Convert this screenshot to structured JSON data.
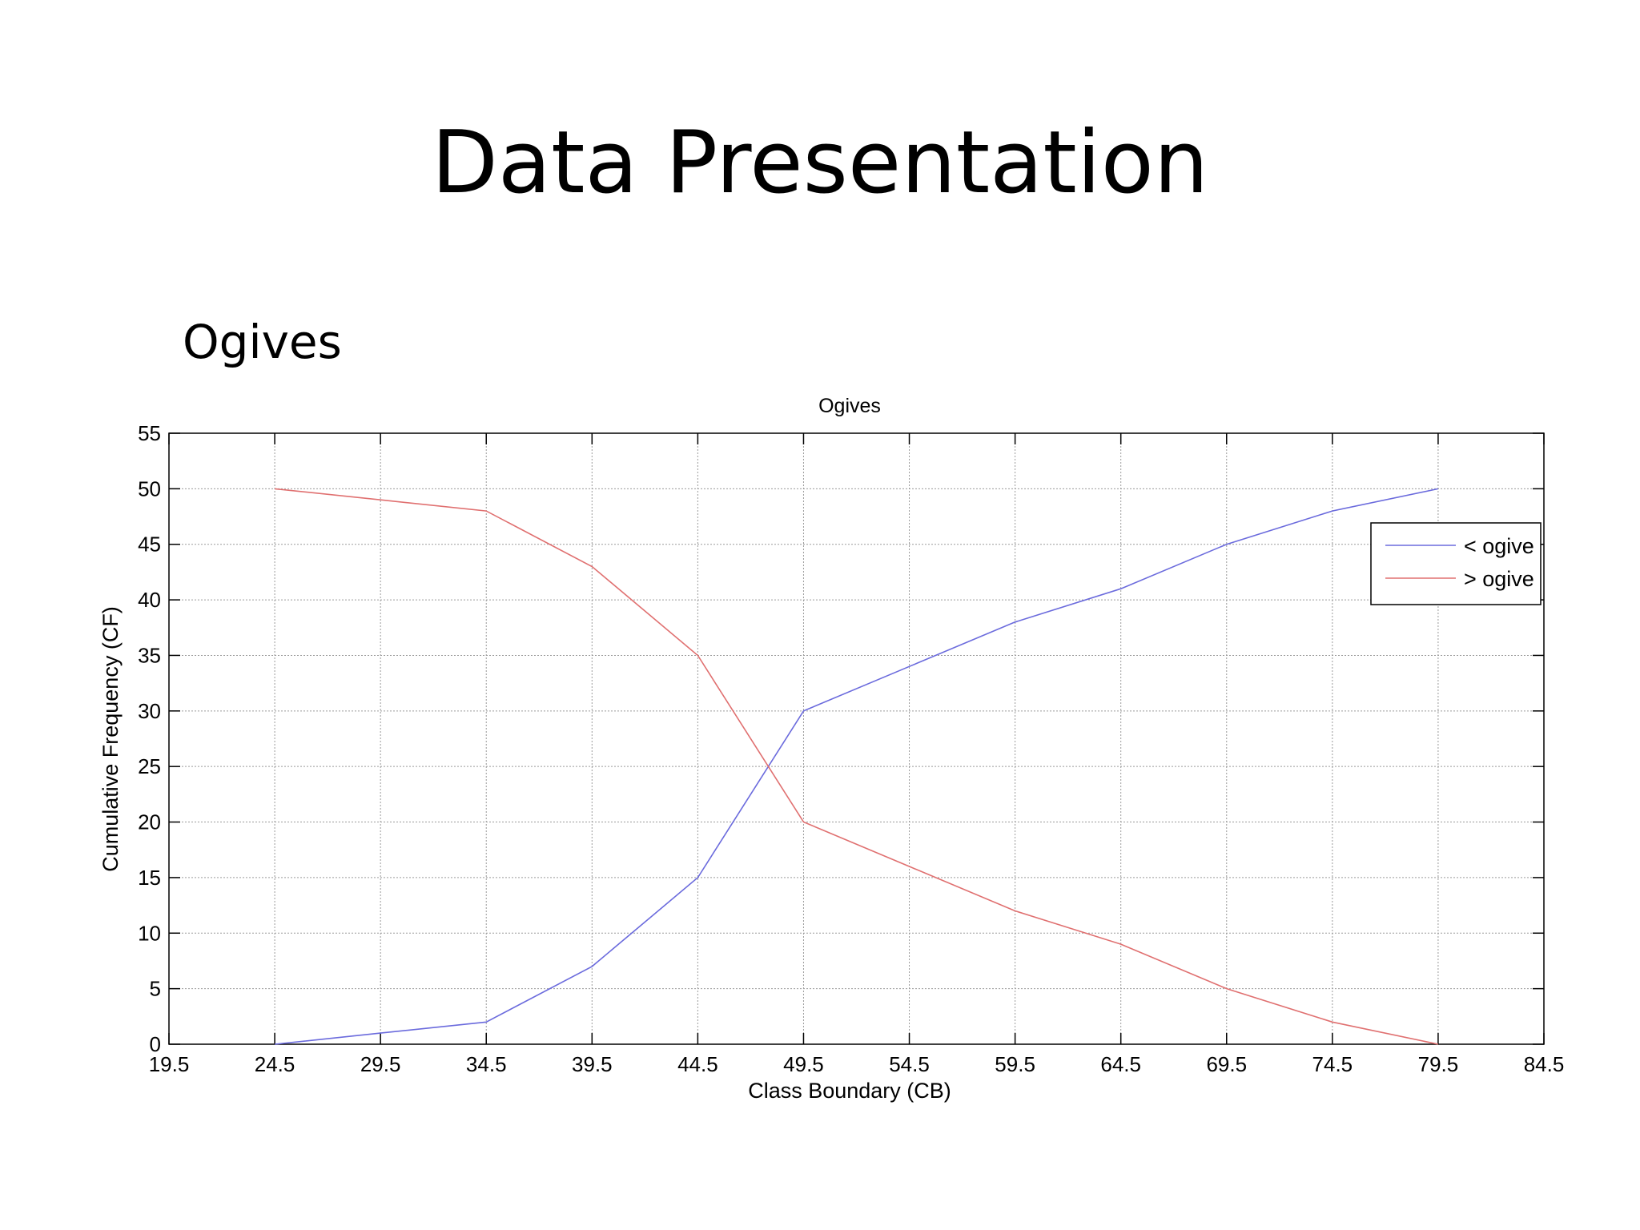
{
  "slide": {
    "title": "Data Presentation",
    "subtitle": "Ogives"
  },
  "chart_data": {
    "type": "line",
    "title": "Ogives",
    "xlabel": "Class Boundary (CB)",
    "ylabel": "Cumulative Frequency (CF)",
    "xlim": [
      19.5,
      84.5
    ],
    "ylim": [
      0,
      55
    ],
    "xticks": [
      19.5,
      24.5,
      29.5,
      34.5,
      39.5,
      44.5,
      49.5,
      54.5,
      59.5,
      64.5,
      69.5,
      74.5,
      79.5,
      84.5
    ],
    "yticks": [
      0,
      5,
      10,
      15,
      20,
      25,
      30,
      35,
      40,
      45,
      50,
      55
    ],
    "grid": true,
    "legend_position": "top-right",
    "x": [
      24.5,
      29.5,
      34.5,
      39.5,
      44.5,
      49.5,
      54.5,
      59.5,
      64.5,
      69.5,
      74.5,
      79.5
    ],
    "series": [
      {
        "name": "< ogive",
        "color": "#6b6bdd",
        "values": [
          0,
          1,
          2,
          7,
          15,
          30,
          34,
          38,
          41,
          45,
          48,
          50
        ]
      },
      {
        "name": "> ogive",
        "color": "#e07070",
        "values": [
          50,
          49,
          48,
          43,
          35,
          20,
          16,
          12,
          9,
          5,
          2,
          0
        ]
      }
    ]
  }
}
